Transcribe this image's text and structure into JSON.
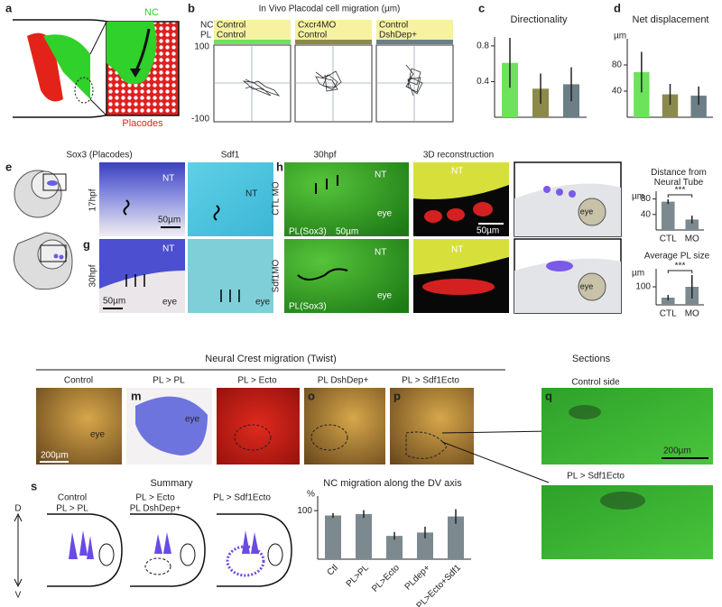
{
  "panels": {
    "a": {
      "label": "a",
      "nc": "NC",
      "placodes": "Placodes"
    },
    "b": {
      "label": "b",
      "title": "In Vivo Placodal cell migration (µm)",
      "row_labels": [
        "NC",
        "PL"
      ],
      "conditions": [
        [
          "Control",
          "Control"
        ],
        [
          "Cxcr4MO",
          "Control"
        ],
        [
          "Control",
          "DshDep+"
        ]
      ],
      "axis_labels": [
        "100",
        "-100"
      ]
    },
    "c": {
      "label": "c"
    },
    "d": {
      "label": "d"
    },
    "e": {
      "label": "e",
      "columns": [
        "Sox3 (Placodes)",
        "Sdf1"
      ],
      "rows": [
        "17hpf",
        "30hpf"
      ],
      "nt": "NT",
      "eye": "eye",
      "scale": "50µm"
    },
    "g": {
      "label": "g"
    },
    "h": {
      "label": "h",
      "columns": [
        "30hpf",
        "3D reconstruction"
      ],
      "rows": [
        "CTL MO",
        "Sdf1MO"
      ],
      "nt": "NT",
      "eye": "eye",
      "marker": "PL(Sox3)",
      "scale": "50µm"
    },
    "twist": {
      "title": "Neural Crest migration (Twist)",
      "columns": [
        "Control",
        "PL > PL",
        "PL > Ecto",
        "PL DshDep+",
        "PL > Sdf1Ecto"
      ],
      "labels": [
        "m",
        "o",
        "p"
      ],
      "eye": "eye",
      "scale": "200µm"
    },
    "sections": {
      "title": "Sections",
      "label": "q",
      "rows": [
        "Control side",
        "PL > Sdf1Ecto"
      ],
      "scale": "200µm"
    },
    "s": {
      "label": "s",
      "title": "Summary",
      "groups": [
        "Control",
        "PL > PL",
        "PL > Ecto",
        "PL DshDep+",
        "PL > Sdf1Ecto"
      ],
      "d": "D",
      "v": "V"
    }
  },
  "chart_data": [
    {
      "type": "bar",
      "title": "Directionality",
      "categories": [
        null,
        null,
        null
      ],
      "values": [
        0.61,
        0.32,
        0.37
      ],
      "errors": [
        0.28,
        0.17,
        0.19
      ],
      "colors": [
        "#6de35b",
        "#8b8a4c",
        "#6c7e86"
      ],
      "ylim": [
        0,
        0.9
      ],
      "yticks": [
        0.4,
        0.8
      ]
    },
    {
      "type": "bar",
      "title": "Net displacement",
      "ylabel": "µm",
      "categories": [
        null,
        null,
        null
      ],
      "values": [
        69,
        35,
        33
      ],
      "errors": [
        31,
        16,
        14
      ],
      "colors": [
        "#6de35b",
        "#8b8a4c",
        "#6c7e86"
      ],
      "ylim": [
        0,
        120
      ],
      "yticks": [
        40,
        80
      ]
    },
    {
      "type": "bar",
      "title": "Distance from Neural Tube",
      "ylabel": "µm",
      "categories": [
        "CTL",
        "MO"
      ],
      "values": [
        73,
        27
      ],
      "errors": [
        6,
        10
      ],
      "colors": [
        "#7c8a90",
        "#7c8a90"
      ],
      "ylim": [
        0,
        100
      ],
      "yticks": [
        40,
        80
      ],
      "significance": "***"
    },
    {
      "type": "bar",
      "title": "Average PL size",
      "ylabel": "µm",
      "categories": [
        "CTL",
        "MO"
      ],
      "values": [
        40,
        100
      ],
      "errors": [
        15,
        65
      ],
      "colors": [
        "#7c8a90",
        "#7c8a90"
      ],
      "ylim": [
        0,
        200
      ],
      "yticks": [
        100
      ],
      "significance": "***"
    },
    {
      "type": "bar",
      "title": "NC migration along the DV axis",
      "ylabel": "%",
      "categories": [
        "Ctl",
        "PL>PL",
        "PL>Ecto",
        "PLdep+",
        "PL>Ecto+Sdf1"
      ],
      "values": [
        90,
        93,
        48,
        55,
        88
      ],
      "errors": [
        5,
        8,
        8,
        12,
        15
      ],
      "colors": [
        "#7c8a90",
        "#7c8a90",
        "#7c8a90",
        "#7c8a90",
        "#7c8a90"
      ],
      "ylim": [
        0,
        130
      ],
      "yticks": [
        100
      ]
    }
  ]
}
